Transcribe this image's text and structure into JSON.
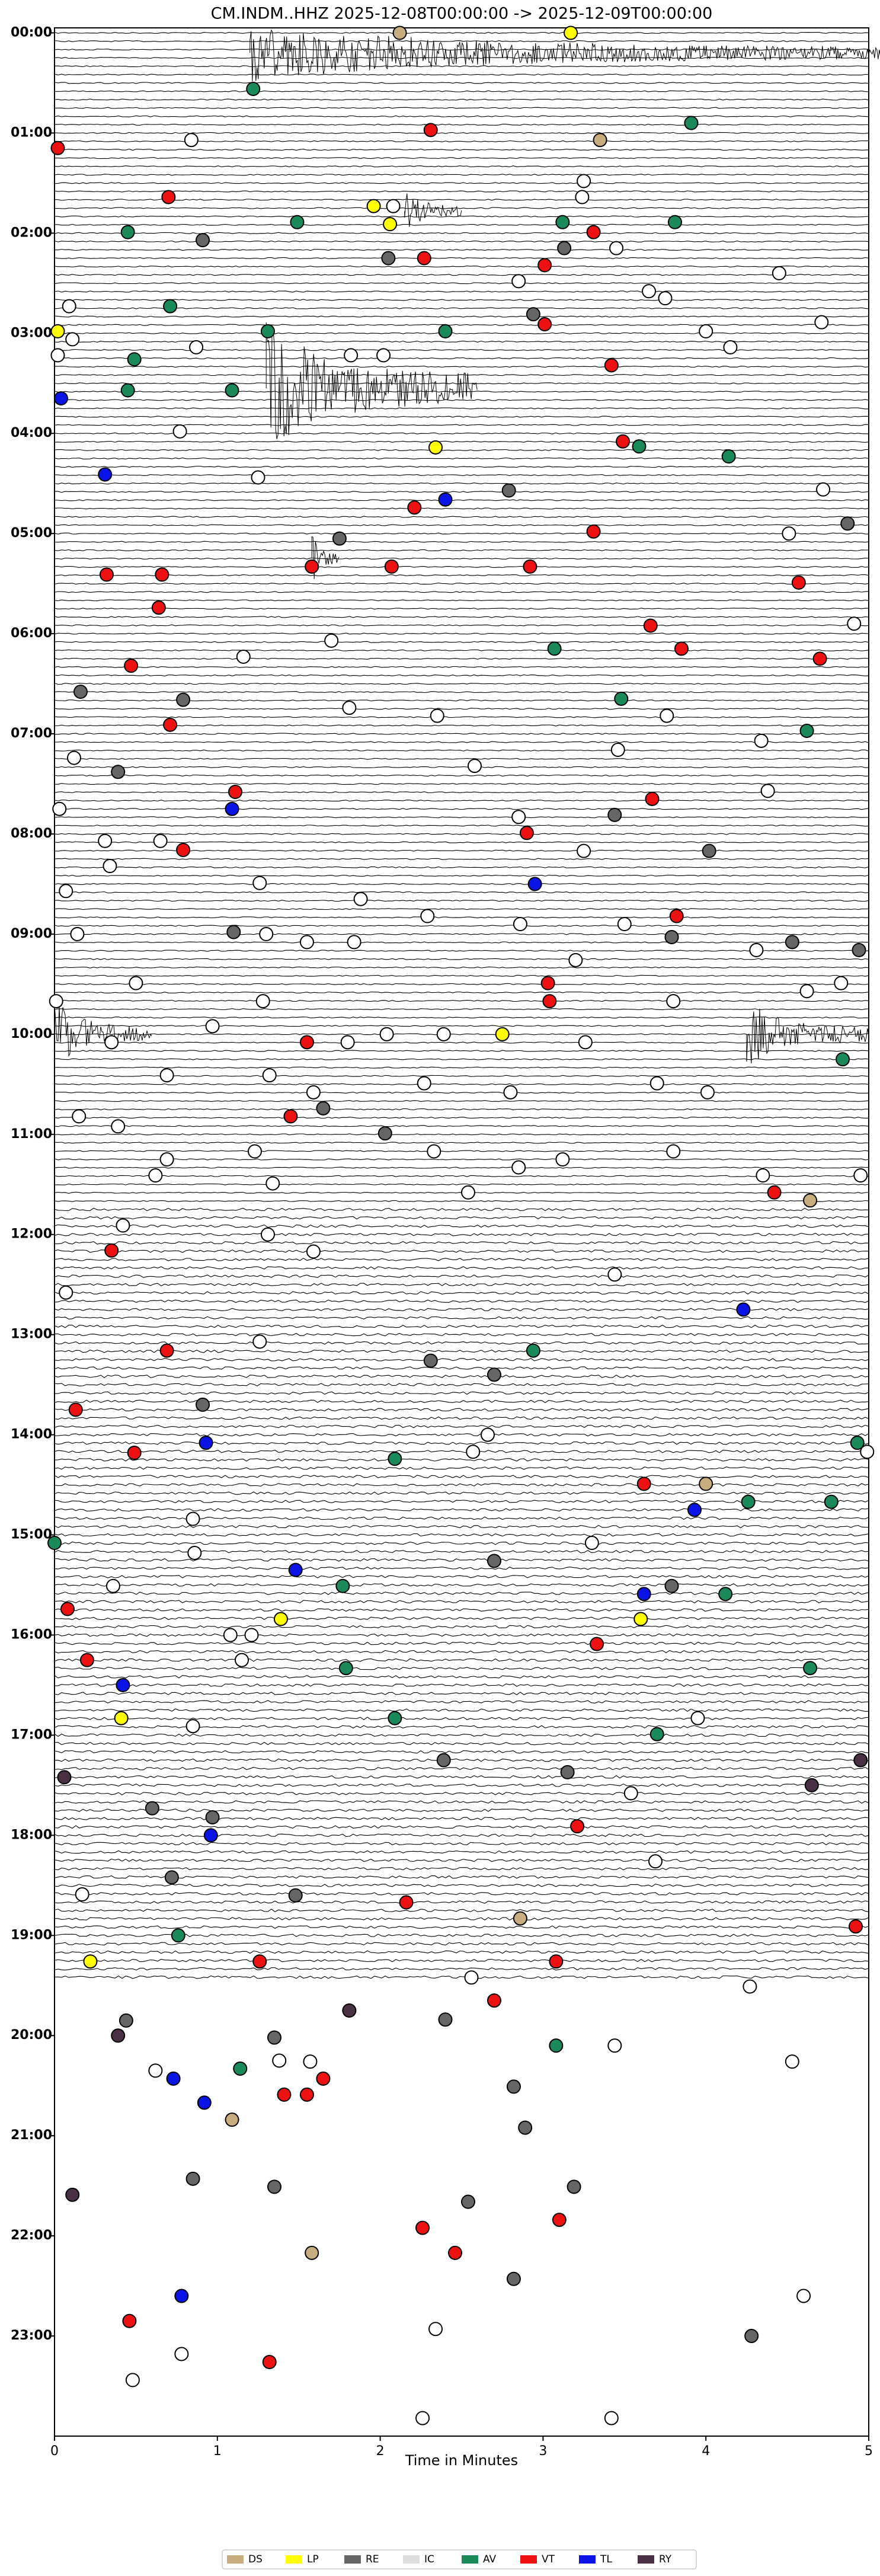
{
  "chart_data": {
    "type": "scatter",
    "title": "CM.INDM..HHZ  2025-12-08T00:00:00 -> 2025-12-09T00:00:00",
    "xlabel": "Time in Minutes",
    "xlim": [
      0,
      5
    ],
    "xticks": [
      0,
      1,
      2,
      3,
      4,
      5
    ],
    "ylim": [
      -0.05,
      24
    ],
    "yticks": [
      {
        "value": 0,
        "label": "00:00"
      },
      {
        "value": 1,
        "label": "01:00"
      },
      {
        "value": 2,
        "label": "02:00"
      },
      {
        "value": 3,
        "label": "03:00"
      },
      {
        "value": 4,
        "label": "04:00"
      },
      {
        "value": 5,
        "label": "05:00"
      },
      {
        "value": 6,
        "label": "06:00"
      },
      {
        "value": 7,
        "label": "07:00"
      },
      {
        "value": 8,
        "label": "08:00"
      },
      {
        "value": 9,
        "label": "09:00"
      },
      {
        "value": 10,
        "label": "10:00"
      },
      {
        "value": 11,
        "label": "11:00"
      },
      {
        "value": 12,
        "label": "12:00"
      },
      {
        "value": 13,
        "label": "13:00"
      },
      {
        "value": 14,
        "label": "14:00"
      },
      {
        "value": 15,
        "label": "15:00"
      },
      {
        "value": 16,
        "label": "16:00"
      },
      {
        "value": 17,
        "label": "17:00"
      },
      {
        "value": 18,
        "label": "18:00"
      },
      {
        "value": 19,
        "label": "19:00"
      },
      {
        "value": 20,
        "label": "20:00"
      },
      {
        "value": 21,
        "label": "21:00"
      },
      {
        "value": 22,
        "label": "22:00"
      },
      {
        "value": 23,
        "label": "23:00"
      }
    ],
    "y_inverted": true,
    "legend": "bottom",
    "series": [
      {
        "color": "#ffffff",
        "x": [
          0.84,
          3.25,
          3.24,
          2.08,
          3.45,
          2.85,
          3.65,
          3.75,
          4.45,
          0.09,
          0.11,
          0.87,
          1.82,
          2.02,
          4.0,
          4.15,
          4.71,
          0.02,
          0.77,
          1.25,
          4.72,
          4.51,
          4.91,
          1.7,
          1.16,
          1.81,
          2.35,
          3.76,
          4.34,
          0.12,
          2.58,
          3.46,
          4.38,
          0.03,
          2.85,
          0.31,
          0.65,
          0.34,
          3.25,
          1.88,
          0.07,
          1.26,
          2.29,
          2.86,
          3.5,
          0.14,
          1.3,
          1.55,
          1.84,
          4.31,
          3.2,
          0.5,
          4.83,
          0.01,
          1.28,
          3.8,
          4.62,
          0.97,
          1.8,
          2.04,
          2.39,
          3.26,
          0.35,
          0.69,
          1.32,
          1.59,
          2.27,
          2.8,
          3.7,
          4.01,
          0.15,
          0.39,
          1.23,
          2.33,
          2.85,
          3.12,
          3.8,
          0.69,
          0.62,
          4.35,
          4.95,
          2.54,
          1.34,
          0.42,
          1.31,
          1.59,
          3.44,
          0.07,
          1.26,
          2.66,
          2.57,
          4.99,
          0.85,
          3.3,
          0.86,
          0.36,
          1.08,
          1.21,
          1.15,
          0.85,
          3.95,
          3.54,
          3.69,
          0.17,
          2.56,
          4.27,
          0.62,
          3.44,
          4.53,
          1.38,
          1.57,
          4.6,
          2.34,
          0.48,
          0.78,
          2.26,
          3.42
        ],
        "values": [
          1.07,
          1.48,
          1.64,
          1.73,
          2.15,
          2.48,
          2.58,
          2.65,
          2.4,
          2.73,
          3.06,
          3.14,
          3.22,
          3.22,
          2.98,
          3.14,
          2.89,
          3.22,
          3.98,
          4.44,
          4.56,
          5.0,
          5.9,
          6.07,
          6.23,
          6.74,
          6.82,
          6.82,
          7.07,
          7.24,
          7.32,
          7.16,
          7.57,
          7.75,
          7.83,
          8.07,
          8.07,
          8.32,
          8.17,
          8.65,
          8.57,
          8.49,
          8.82,
          8.9,
          8.9,
          9.0,
          9.0,
          9.08,
          9.08,
          9.16,
          9.26,
          9.49,
          9.49,
          9.67,
          9.67,
          9.67,
          9.57,
          9.92,
          10.08,
          10.0,
          10.0,
          10.08,
          10.08,
          10.41,
          10.41,
          10.58,
          10.49,
          10.58,
          10.49,
          10.58,
          10.82,
          10.92,
          11.17,
          11.17,
          11.33,
          11.25,
          11.17,
          11.25,
          11.41,
          11.41,
          11.41,
          11.58,
          11.49,
          11.91,
          12.0,
          12.17,
          12.4,
          12.58,
          13.07,
          14.0,
          14.17,
          14.17,
          14.84,
          15.08,
          15.18,
          15.51,
          16.0,
          16.0,
          16.25,
          16.91,
          16.83,
          17.58,
          18.26,
          18.59,
          19.42,
          19.51,
          20.35,
          20.1,
          20.26,
          20.25,
          20.26,
          22.6,
          22.93,
          23.44,
          23.18,
          23.82,
          23.82
        ]
      },
      {
        "name": "DS",
        "color": "#c8ad7f",
        "x": [
          2.12,
          3.35,
          4.64,
          4.0,
          2.86,
          1.58,
          1.09
        ],
        "values": [
          0,
          1.07,
          11.66,
          14.49,
          18.83,
          22.17,
          20.84
        ]
      },
      {
        "name": "LP",
        "color": "#ffff00",
        "x": [
          3.17,
          1.96,
          2.06,
          0.02,
          2.34,
          2.75,
          1.39,
          3.6,
          0.41,
          0.22
        ],
        "values": [
          0,
          1.73,
          1.91,
          2.98,
          4.14,
          10.0,
          15.84,
          15.84,
          16.83,
          19.26
        ]
      },
      {
        "name": "RE",
        "color": "#666666",
        "x": [
          1.75,
          2.79,
          0.91,
          2.05,
          3.13,
          2.94,
          1.1,
          4.53,
          4.94,
          0.16,
          0.79,
          0.39,
          3.44,
          4.02,
          3.79,
          4.87,
          1.65,
          2.03,
          2.7,
          2.31,
          0.91,
          2.7,
          3.79,
          2.39,
          3.15,
          0.72,
          0.6,
          1.48,
          0.97,
          1.35,
          2.4,
          2.82,
          2.89,
          0.85,
          1.35,
          2.54,
          2.82,
          3.19,
          4.28,
          0.44
        ],
        "values": [
          5.05,
          4.57,
          2.07,
          2.25,
          2.15,
          2.81,
          8.98,
          9.08,
          9.16,
          6.58,
          6.66,
          7.38,
          7.81,
          8.17,
          9.03,
          4.9,
          10.74,
          10.99,
          13.4,
          13.26,
          13.7,
          15.26,
          15.51,
          17.25,
          17.37,
          18.42,
          17.73,
          18.6,
          17.82,
          20.02,
          19.84,
          20.51,
          20.92,
          21.43,
          21.51,
          21.66,
          22.43,
          21.51,
          23.0,
          19.85
        ]
      },
      {
        "name": "IC",
        "color": "#dddddd",
        "x": [],
        "values": []
      },
      {
        "name": "AV",
        "color": "#1a8a5a",
        "x": [
          1.22,
          3.91,
          1.49,
          0.45,
          3.12,
          3.81,
          0.71,
          1.31,
          2.4,
          0.49,
          0.45,
          1.09,
          3.59,
          4.14,
          3.07,
          3.48,
          4.62,
          4.84,
          2.94,
          4.93,
          2.09,
          4.26,
          4.77,
          0,
          4.12,
          1.77,
          1.79,
          4.64,
          2.09,
          3.7,
          0.76,
          1.14,
          3.08
        ],
        "values": [
          0.56,
          0.9,
          1.89,
          1.99,
          1.89,
          1.89,
          2.73,
          2.98,
          2.98,
          3.26,
          3.57,
          3.57,
          4.13,
          4.23,
          6.15,
          6.65,
          6.97,
          10.25,
          13.16,
          14.08,
          14.24,
          14.67,
          14.67,
          15.08,
          15.59,
          15.51,
          16.33,
          16.33,
          16.83,
          16.99,
          19.0,
          20.33,
          20.1
        ]
      },
      {
        "name": "VT",
        "color": "#ee1111",
        "x": [
          2.31,
          0.02,
          0.7,
          3.31,
          2.27,
          3.01,
          3.01,
          3.42,
          3.49,
          2.21,
          3.31,
          0.32,
          0.66,
          1.58,
          2.07,
          2.92,
          4.57,
          0.64,
          3.66,
          3.85,
          0.47,
          4.7,
          0.71,
          1.11,
          3.67,
          0.79,
          2.9,
          3.82,
          3.03,
          3.04,
          1.55,
          1.45,
          4.42,
          0.35,
          0.69,
          0.13,
          0.49,
          3.62,
          0.08,
          3.33,
          0.2,
          3.21,
          2.16,
          4.92,
          1.26,
          3.08,
          2.7,
          1.41,
          1.55,
          1.65,
          2.26,
          2.46,
          3.1,
          0.46,
          1.32
        ],
        "values": [
          0.97,
          1.15,
          1.64,
          1.99,
          2.25,
          2.32,
          2.91,
          3.32,
          4.08,
          4.74,
          4.98,
          5.41,
          5.41,
          5.33,
          5.33,
          5.33,
          5.49,
          5.74,
          5.92,
          6.15,
          6.32,
          6.25,
          6.91,
          7.58,
          7.65,
          8.16,
          7.99,
          8.82,
          9.49,
          9.67,
          10.08,
          10.82,
          11.58,
          12.16,
          13.16,
          13.75,
          14.18,
          14.49,
          15.74,
          16.09,
          16.25,
          17.91,
          18.67,
          18.91,
          19.26,
          19.26,
          19.65,
          20.59,
          20.59,
          20.43,
          21.92,
          22.17,
          21.84,
          22.85,
          23.26
        ]
      },
      {
        "name": "TL",
        "color": "#0a14e6",
        "x": [
          0.04,
          0.31,
          2.4,
          1.09,
          2.95,
          0.93,
          3.93,
          1.48,
          3.62,
          0.42,
          0.96,
          4.23,
          0.73,
          0.92,
          0.78
        ],
        "values": [
          3.65,
          4.41,
          4.66,
          7.75,
          8.5,
          14.08,
          14.75,
          15.35,
          15.59,
          16.5,
          18.0,
          12.75,
          20.43,
          20.67,
          22.6
        ]
      },
      {
        "name": "RY",
        "color": "#4a3045",
        "x": [
          0.06,
          4.65,
          4.95,
          0.39,
          1.81,
          0.11
        ],
        "values": [
          17.42,
          17.5,
          17.25,
          20.0,
          19.75,
          21.59
        ]
      }
    ]
  }
}
